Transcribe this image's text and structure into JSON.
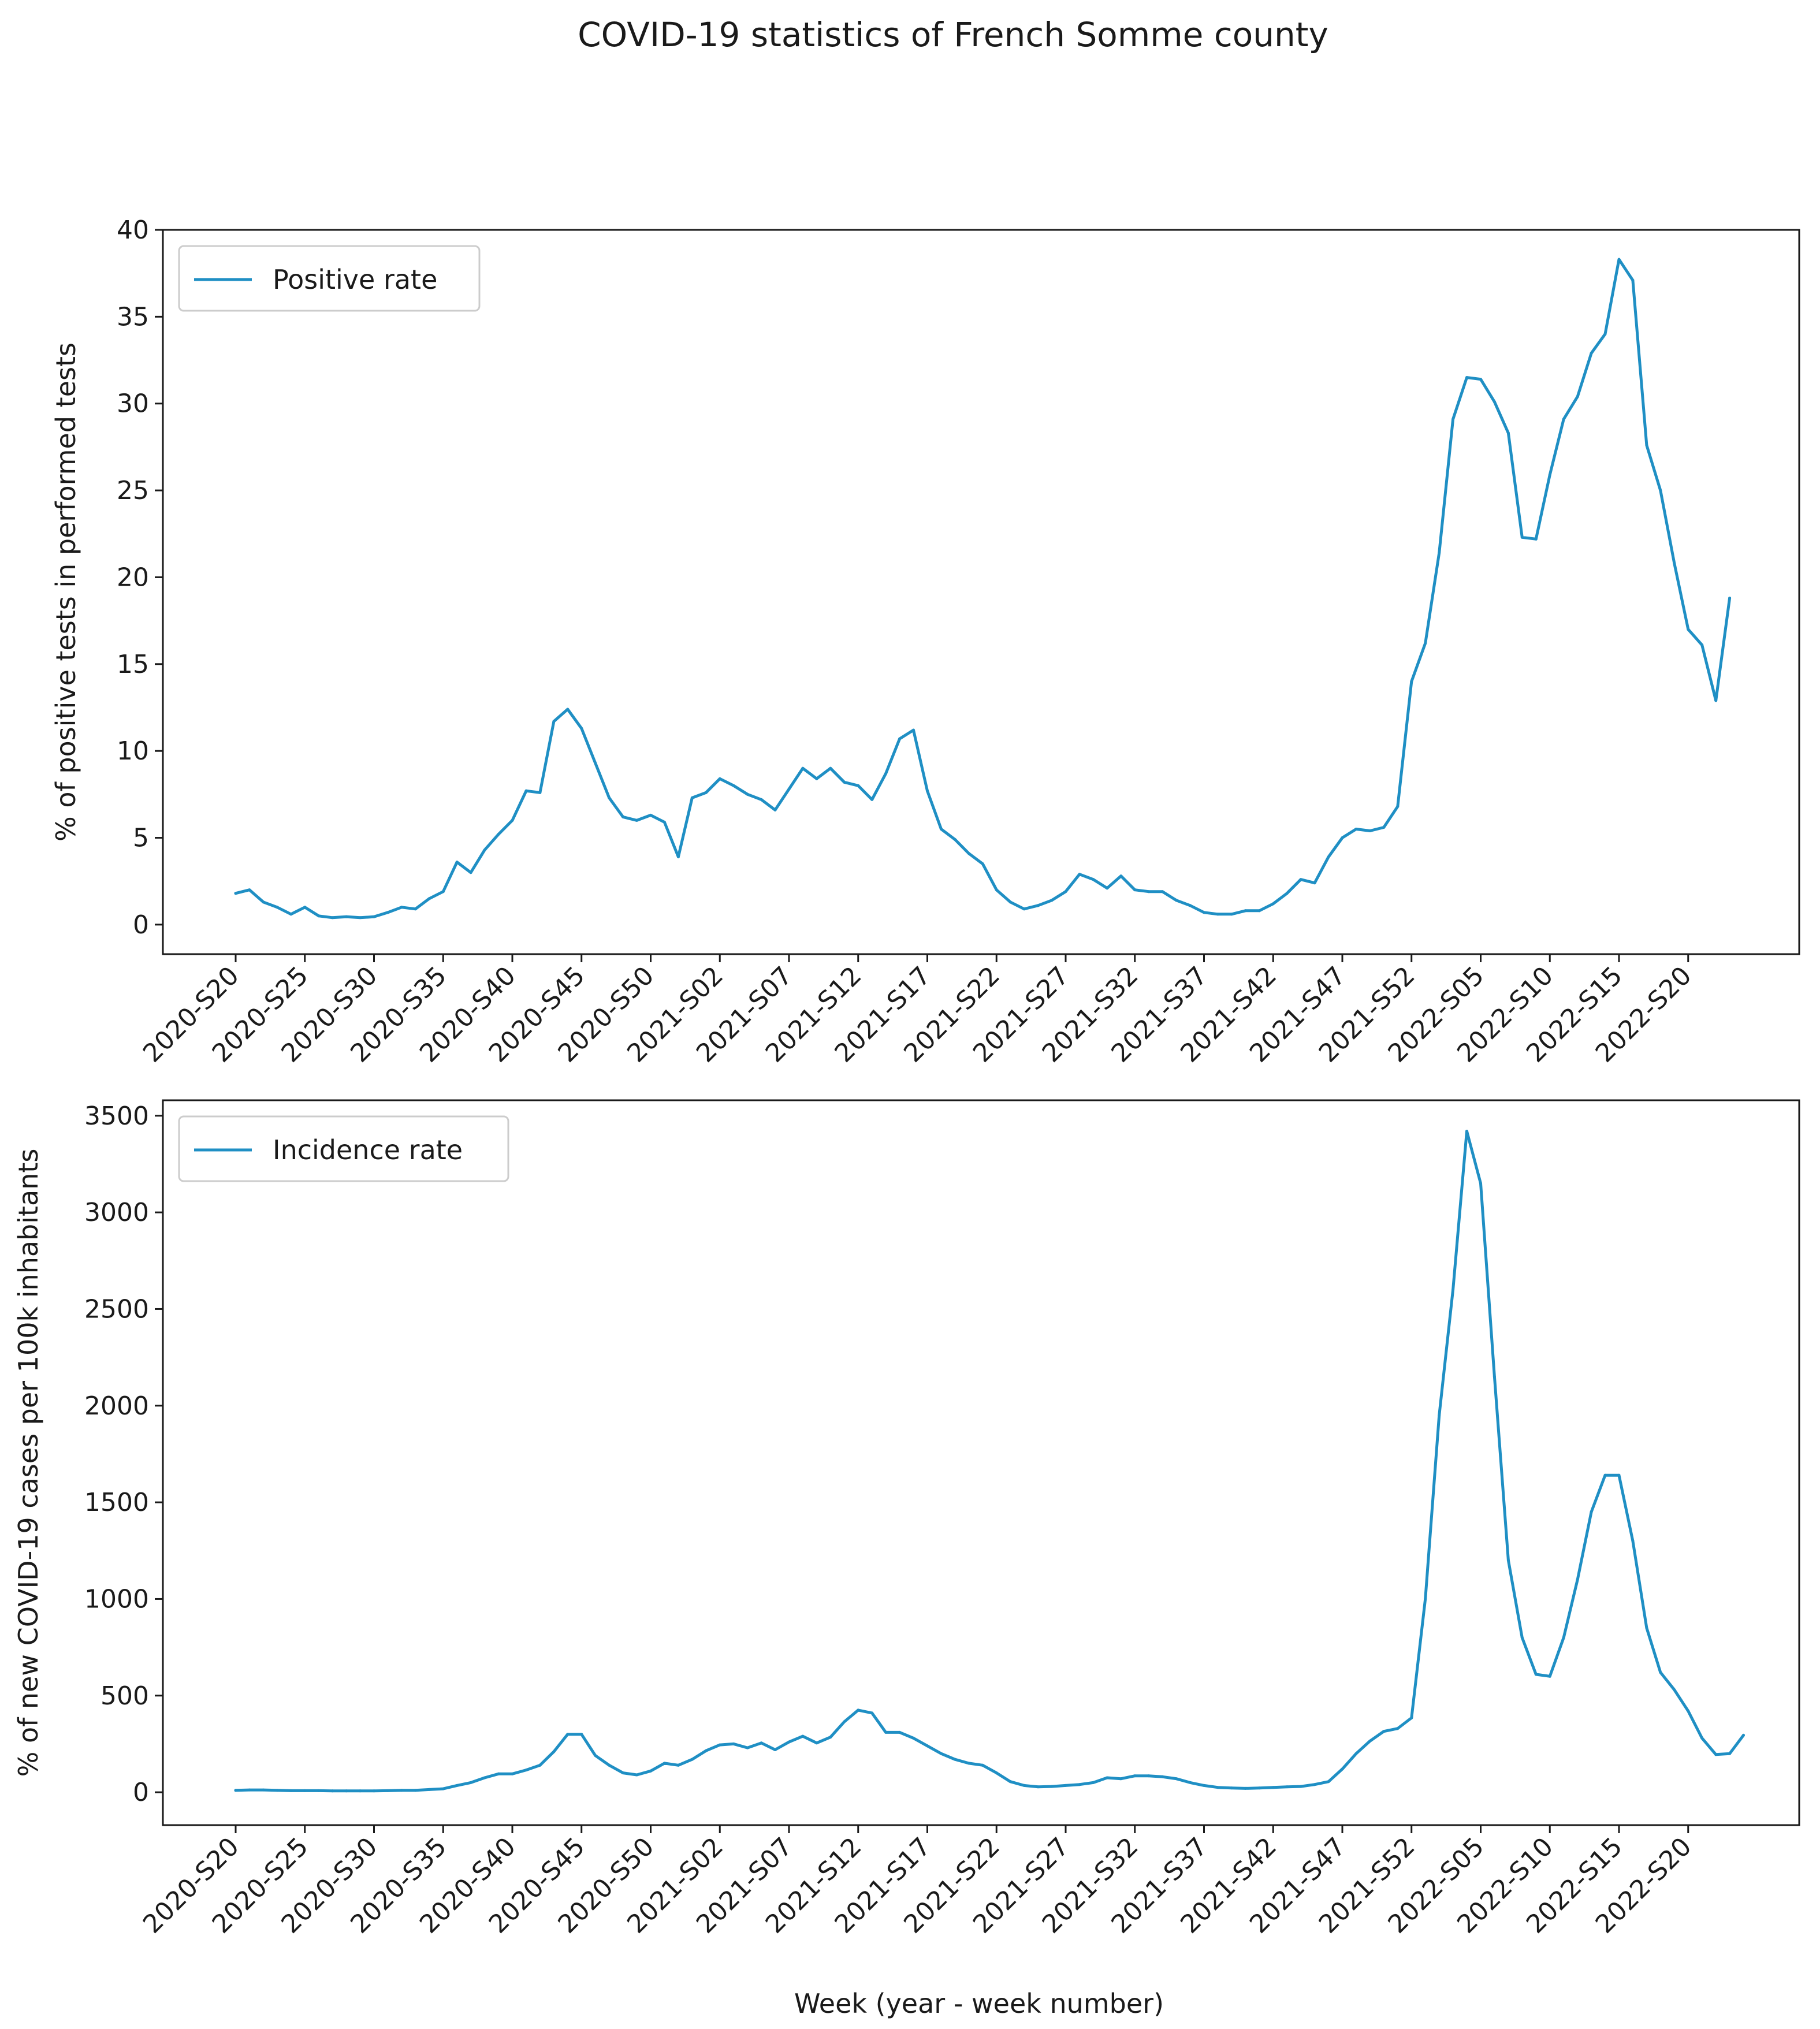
{
  "figure": {
    "title": "COVID-19 statistics of French Somme county",
    "xlabel": "Week (year - week number)"
  },
  "colors": {
    "line": "#1f8fc4"
  },
  "chart_data": [
    {
      "type": "line",
      "legend": "Positive rate",
      "legend_location": "top-left",
      "ylabel": "% of positive tests in performed tests",
      "ylim": [
        -1.7,
        40
      ],
      "yticks": [
        0,
        5,
        10,
        15,
        20,
        25,
        30,
        35,
        40
      ],
      "xtick_labels": [
        "2020-S20",
        "2020-S25",
        "2020-S30",
        "2020-S35",
        "2020-S40",
        "2020-S45",
        "2020-S50",
        "2021-S02",
        "2021-S07",
        "2021-S12",
        "2021-S17",
        "2021-S22",
        "2021-S27",
        "2021-S32",
        "2021-S37",
        "2021-S42",
        "2021-S47",
        "2021-S52",
        "2022-S05",
        "2022-S10",
        "2022-S15",
        "2022-S20"
      ],
      "values": [
        1.8,
        2.0,
        1.3,
        1.0,
        0.6,
        1.0,
        0.5,
        0.4,
        0.45,
        0.4,
        0.45,
        0.7,
        1.0,
        0.9,
        1.5,
        1.9,
        3.6,
        3.0,
        4.3,
        5.2,
        6.0,
        7.7,
        7.6,
        11.7,
        12.4,
        11.3,
        9.3,
        7.3,
        6.2,
        6.0,
        6.3,
        5.9,
        3.9,
        7.3,
        7.6,
        8.4,
        8.0,
        7.5,
        7.2,
        6.6,
        7.8,
        9.0,
        8.4,
        9.0,
        8.2,
        8.0,
        7.2,
        8.7,
        10.7,
        11.2,
        7.7,
        5.5,
        4.9,
        4.1,
        3.5,
        2.0,
        1.3,
        0.9,
        1.1,
        1.4,
        1.9,
        2.9,
        2.6,
        2.1,
        2.8,
        2.0,
        1.9,
        1.9,
        1.4,
        1.1,
        0.7,
        0.6,
        0.6,
        0.8,
        0.8,
        1.2,
        1.8,
        2.6,
        2.4,
        3.9,
        5.0,
        5.5,
        5.4,
        5.6,
        6.8,
        14.0,
        16.2,
        21.4,
        29.1,
        31.5,
        31.4,
        30.1,
        28.3,
        22.3,
        22.2,
        25.9,
        29.1,
        30.4,
        32.9,
        34.0,
        38.3,
        37.1,
        27.6,
        25.0,
        20.8,
        17.0,
        16.1,
        12.9,
        18.8
      ]
    },
    {
      "type": "line",
      "legend": "Incidence rate",
      "legend_location": "top-left",
      "ylabel": "% of new COVID-19 cases per 100k inhabitants",
      "ylim": [
        -170,
        3580
      ],
      "yticks": [
        0,
        500,
        1000,
        1500,
        2000,
        2500,
        3000,
        3500
      ],
      "xtick_labels": [
        "2020-S20",
        "2020-S25",
        "2020-S30",
        "2020-S35",
        "2020-S40",
        "2020-S45",
        "2020-S50",
        "2021-S02",
        "2021-S07",
        "2021-S12",
        "2021-S17",
        "2021-S22",
        "2021-S27",
        "2021-S32",
        "2021-S37",
        "2021-S42",
        "2021-S47",
        "2021-S52",
        "2022-S05",
        "2022-S10",
        "2022-S15",
        "2022-S20"
      ],
      "values": [
        10,
        12,
        12,
        10,
        8,
        8,
        8,
        7,
        7,
        7,
        7,
        8,
        10,
        10,
        14,
        18,
        35,
        50,
        75,
        95,
        95,
        115,
        140,
        210,
        300,
        300,
        190,
        140,
        100,
        90,
        110,
        150,
        140,
        170,
        215,
        245,
        250,
        230,
        255,
        220,
        260,
        290,
        255,
        285,
        365,
        425,
        410,
        310,
        310,
        280,
        240,
        200,
        170,
        150,
        140,
        100,
        55,
        35,
        28,
        30,
        35,
        40,
        50,
        75,
        70,
        85,
        85,
        80,
        70,
        50,
        35,
        25,
        22,
        20,
        22,
        25,
        28,
        30,
        40,
        55,
        120,
        200,
        265,
        315,
        330,
        385,
        1000,
        1950,
        2600,
        3420,
        3150,
        2150,
        1200,
        800,
        610,
        600,
        800,
        1100,
        1450,
        1640,
        1640,
        1300,
        850,
        620,
        530,
        420,
        280,
        195,
        200,
        295
      ]
    }
  ]
}
